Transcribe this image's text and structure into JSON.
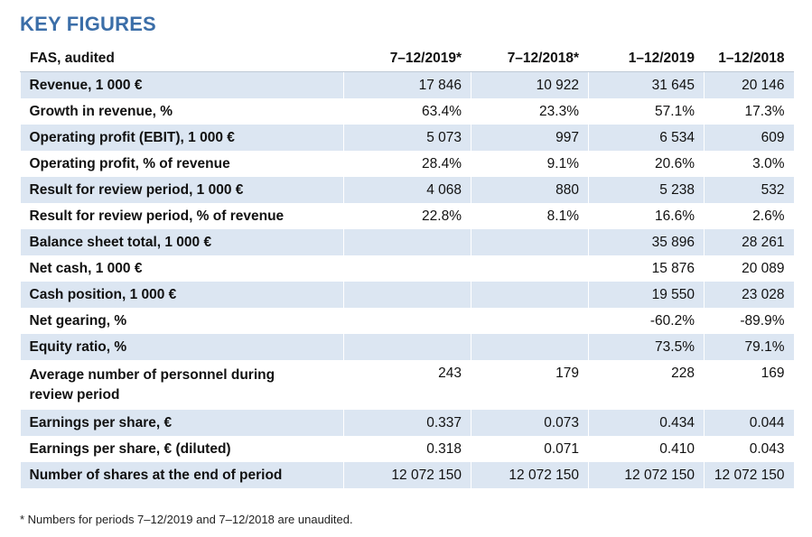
{
  "title": "KEY FIGURES",
  "table": {
    "header": {
      "label": "FAS, audited",
      "columns": [
        "7–12/2019*",
        "7–12/2018*",
        "1–12/2019",
        "1–12/2018"
      ]
    },
    "rows": [
      {
        "label": "Revenue, 1 000 €",
        "values": [
          "17 846",
          "10 922",
          "31 645",
          "20 146"
        ]
      },
      {
        "label": "Growth in revenue, %",
        "values": [
          "63.4%",
          "23.3%",
          "57.1%",
          "17.3%"
        ]
      },
      {
        "label": "Operating profit (EBIT), 1 000 €",
        "values": [
          "5 073",
          "997",
          "6 534",
          "609"
        ]
      },
      {
        "label": "Operating profit, % of revenue",
        "values": [
          "28.4%",
          "9.1%",
          "20.6%",
          "3.0%"
        ]
      },
      {
        "label": "Result for review period, 1 000 €",
        "values": [
          "4 068",
          "880",
          "5 238",
          "532"
        ]
      },
      {
        "label": "Result for review period, % of revenue",
        "values": [
          "22.8%",
          "8.1%",
          "16.6%",
          "2.6%"
        ]
      },
      {
        "label": "Balance sheet total, 1 000 €",
        "values": [
          "",
          "",
          "35 896",
          "28 261"
        ]
      },
      {
        "label": "Net cash, 1 000 €",
        "values": [
          "",
          "",
          "15 876",
          "20 089"
        ]
      },
      {
        "label": "Cash position, 1 000 €",
        "values": [
          "",
          "",
          "19 550",
          "23 028"
        ]
      },
      {
        "label": "Net gearing, %",
        "values": [
          "",
          "",
          "-60.2%",
          "-89.9%"
        ]
      },
      {
        "label": "Equity ratio, %",
        "values": [
          "",
          "",
          "73.5%",
          "79.1%"
        ]
      },
      {
        "label": "Average number of personnel during review period",
        "values": [
          "243",
          "179",
          "228",
          "169"
        ]
      },
      {
        "label": "Earnings per share, €",
        "values": [
          "0.337",
          "0.073",
          "0.434",
          "0.044"
        ]
      },
      {
        "label": "Earnings per share, € (diluted)",
        "values": [
          "0.318",
          "0.071",
          "0.410",
          "0.043"
        ]
      },
      {
        "label": "Number of shares at the end of period",
        "values": [
          "12 072 150",
          "12 072 150",
          "12 072 150",
          "12 072 150"
        ]
      }
    ]
  },
  "footnote": "* Numbers for periods 7–12/2019 and 7–12/2018 are unaudited.",
  "colors": {
    "title": "#3b6ea8",
    "row_shade": "#dce6f2"
  }
}
